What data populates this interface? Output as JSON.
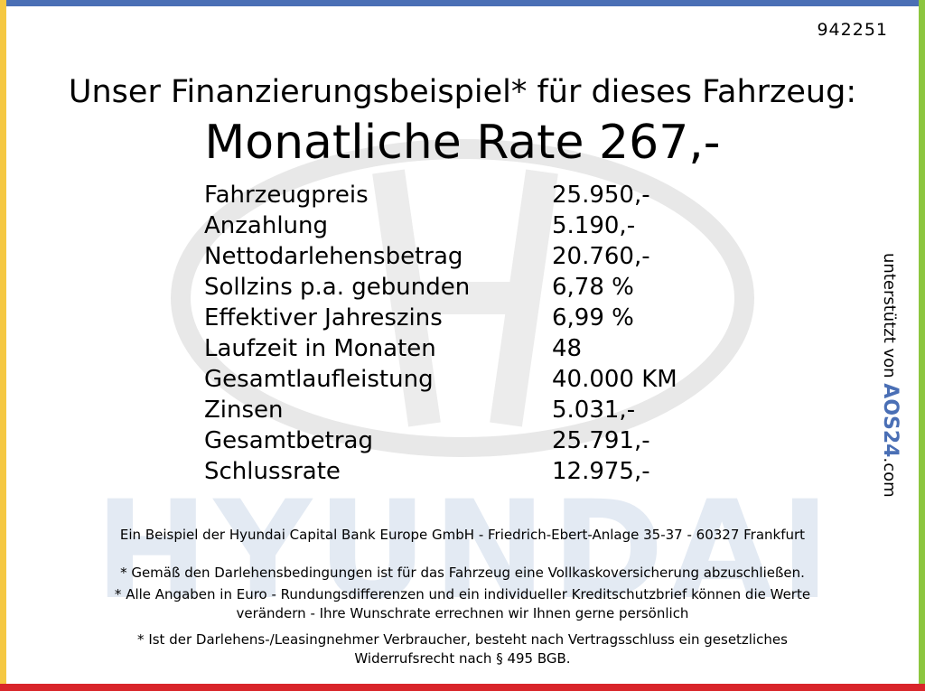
{
  "id": "942251",
  "heading": "Unser Finanzierungsbeispiel* für dieses Fahrzeug:",
  "title": "Monatliche Rate 267,-",
  "rows": [
    [
      "Fahrzeugpreis",
      "25.950,-"
    ],
    [
      "Anzahlung",
      "5.190,-"
    ],
    [
      "Nettodarlehensbetrag",
      "20.760,-"
    ],
    [
      "Sollzins p.a. gebunden",
      "6,78 %"
    ],
    [
      "Effektiver Jahreszins",
      "6,99 %"
    ],
    [
      "Laufzeit in Monaten",
      "48"
    ],
    [
      "Gesamtlaufleistung",
      "40.000 KM"
    ],
    [
      "Zinsen",
      "5.031,-"
    ],
    [
      "Gesamtbetrag",
      "25.791,-"
    ],
    [
      "Schlussrate",
      "12.975,-"
    ]
  ],
  "watermark": "HYUNDAI",
  "footer": [
    [
      "Ein Beispiel der Hyundai Capital Bank Europe GmbH - Friedrich-Ebert-Anlage 35-37 - 60327 Frankfurt"
    ],
    [
      "* Gemäß den Darlehensbedingungen ist für das Fahrzeug eine Vollkaskoversicherung abzuschließen."
    ],
    [
      "* Alle Angaben in Euro - Rundungsdifferenzen und ein individueller Kreditschutzbrief können die Werte",
      "verändern - Ihre Wunschrate errechnen wir Ihnen gerne persönlich"
    ],
    [
      "* Ist der Darlehens-/Leasingnehmer Verbraucher, besteht nach Vertragsschluss ein gesetzliches",
      "Widerrufsrecht nach § 495 BGB."
    ]
  ],
  "side": {
    "text": "unterstützt von",
    "logo": "AOS24",
    "suffix": ".com"
  }
}
